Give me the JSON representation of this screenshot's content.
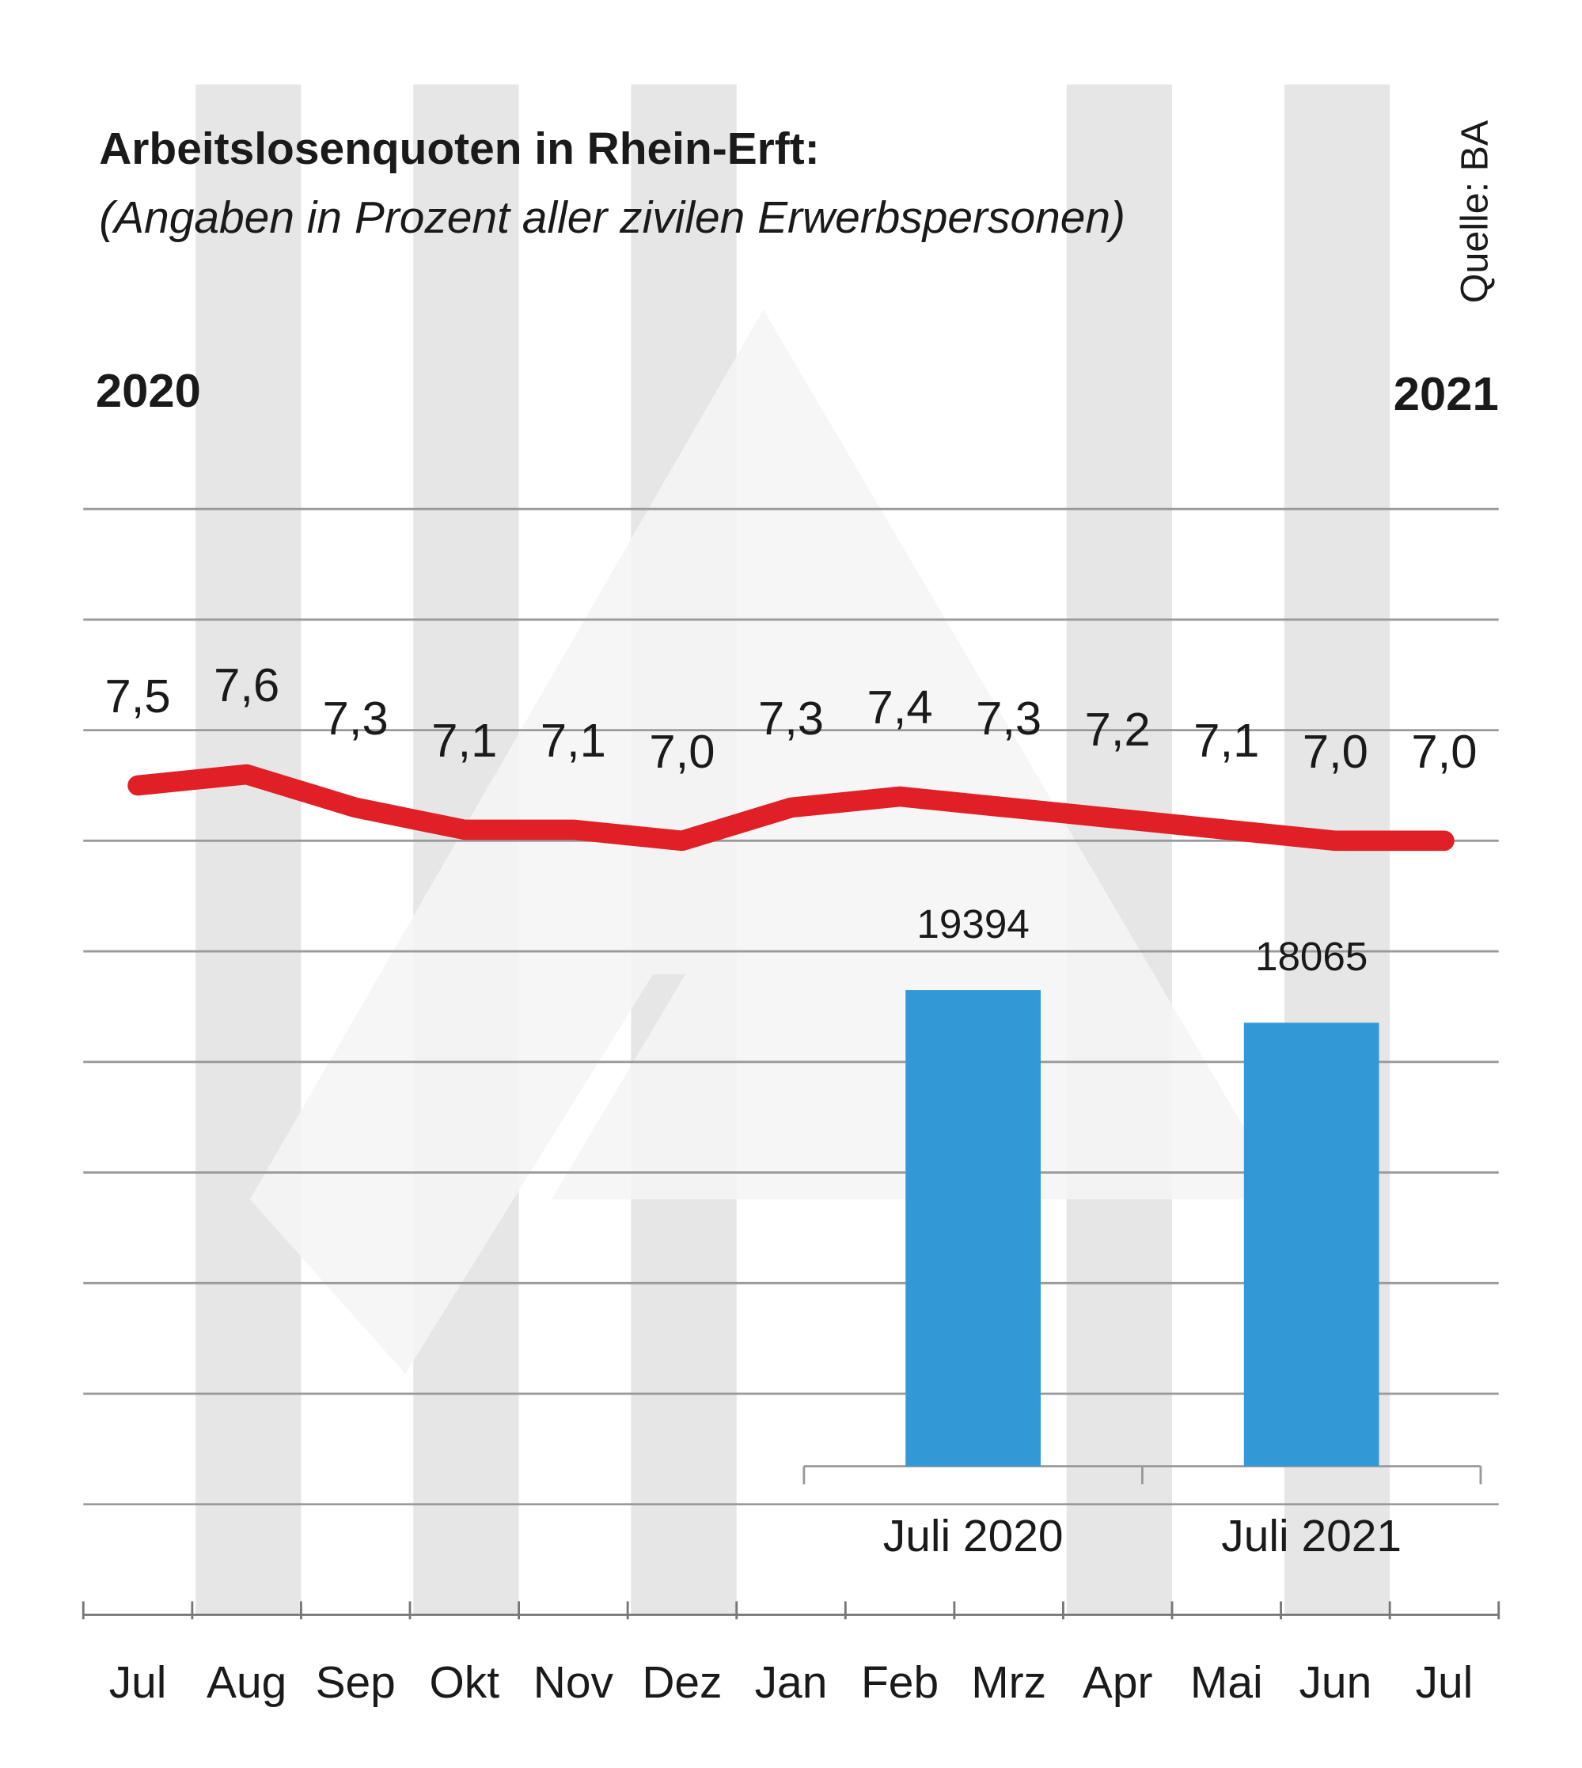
{
  "chart_data": [
    {
      "type": "line",
      "title": "Arbeitslosenquoten in Rhein-Erft:",
      "subtitle": "(Angaben in Prozent aller zivilen Erwerbspersonen)",
      "source": "Quelle: BA",
      "start_label": "2020",
      "end_label": "2021",
      "categories": [
        "Jul",
        "Aug",
        "Sep",
        "Okt",
        "Nov",
        "Dez",
        "Jan",
        "Feb",
        "Mrz",
        "Apr",
        "Mai",
        "Jun",
        "Jul"
      ],
      "values": [
        7.5,
        7.6,
        7.3,
        7.1,
        7.1,
        7.0,
        7.3,
        7.4,
        7.3,
        7.2,
        7.1,
        7.0,
        7.0
      ],
      "value_labels": [
        "7,5",
        "7,6",
        "7,3",
        "7,1",
        "7,1",
        "7,0",
        "7,3",
        "7,4",
        "7,3",
        "7,2",
        "7,1",
        "7,0",
        "7,0"
      ],
      "color": "#e01f26",
      "ylim": [
        0,
        10
      ],
      "yticks": [
        1,
        2,
        3,
        4,
        5,
        6,
        7,
        8,
        9,
        10
      ],
      "grid": true
    },
    {
      "type": "bar",
      "categories": [
        "Juli 2020",
        "Juli 2021"
      ],
      "values": [
        19394,
        18065
      ],
      "color": "#3399d6",
      "ylim": [
        0,
        25000
      ]
    }
  ]
}
